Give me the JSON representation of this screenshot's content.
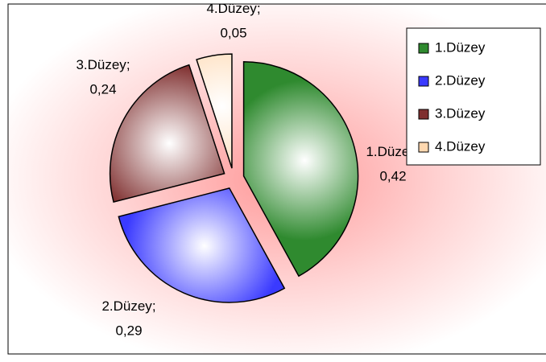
{
  "chart_data": {
    "type": "pie",
    "categories": [
      "1.Düzey",
      "2.Düzey",
      "3.Düzey",
      "4.Düzey"
    ],
    "values": [
      0.42,
      0.29,
      0.24,
      0.05
    ],
    "value_labels": [
      "0,42",
      "0,29",
      "0,24",
      "0,05"
    ],
    "label_separator": ";",
    "colors": [
      "#2f8a2f",
      "#3a3aff",
      "#7f2f2f",
      "#ffd8b0"
    ],
    "legend": "right"
  }
}
